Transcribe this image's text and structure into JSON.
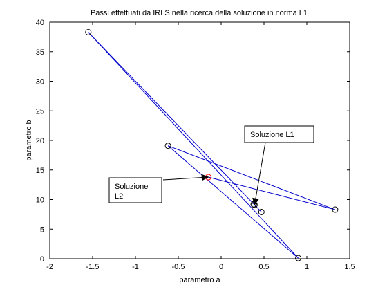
{
  "chart_data": {
    "type": "line",
    "title": "Passi effettuati da IRLS nella ricerca della soluzione in norma L1",
    "xlabel": "parametro a",
    "ylabel": "parametro b",
    "xlim": [
      -2,
      1.5
    ],
    "ylim": [
      0,
      40
    ],
    "xticks": [
      -2,
      -1.5,
      -1,
      -0.5,
      0,
      0.5,
      1,
      1.5
    ],
    "yticks": [
      0,
      5,
      10,
      15,
      20,
      25,
      30,
      35,
      40
    ],
    "xtick_labels": [
      "-2",
      "-1.5",
      "-1",
      "-0.5",
      "0",
      "0.5",
      "1",
      "1.5"
    ],
    "ytick_labels": [
      "0",
      "5",
      "10",
      "15",
      "20",
      "25",
      "30",
      "35",
      "40"
    ],
    "grid": false,
    "series": [
      {
        "line_color": "#0000cc",
        "marker": "circle",
        "points": [
          {
            "x": -0.15,
            "y": 13.8,
            "marker_color": "#ff0000"
          },
          {
            "x": 1.33,
            "y": 8.3,
            "marker_color": "#000000"
          },
          {
            "x": -0.62,
            "y": 19.1,
            "marker_color": "#000000"
          },
          {
            "x": 0.9,
            "y": 0.1,
            "marker_color": "#000000"
          },
          {
            "x": -1.55,
            "y": 38.3,
            "marker_color": "#000000"
          },
          {
            "x": 0.47,
            "y": 7.9,
            "marker_color": "#000000"
          },
          {
            "x": 0.39,
            "y": 9.1,
            "marker_color": "#000000"
          },
          {
            "x": 0.38,
            "y": 9.2,
            "marker_color": "#000000"
          },
          {
            "x": 0.38,
            "y": 9.2,
            "marker_color": "#000000"
          }
        ]
      }
    ],
    "annotations": [
      {
        "text_lines": [
          "Soluzione L1"
        ],
        "arrow_to": {
          "x": 0.39,
          "y": 9.1
        }
      },
      {
        "text_lines": [
          "Soluzione",
          "L2"
        ],
        "arrow_to": {
          "x": -0.15,
          "y": 13.8
        }
      }
    ]
  }
}
